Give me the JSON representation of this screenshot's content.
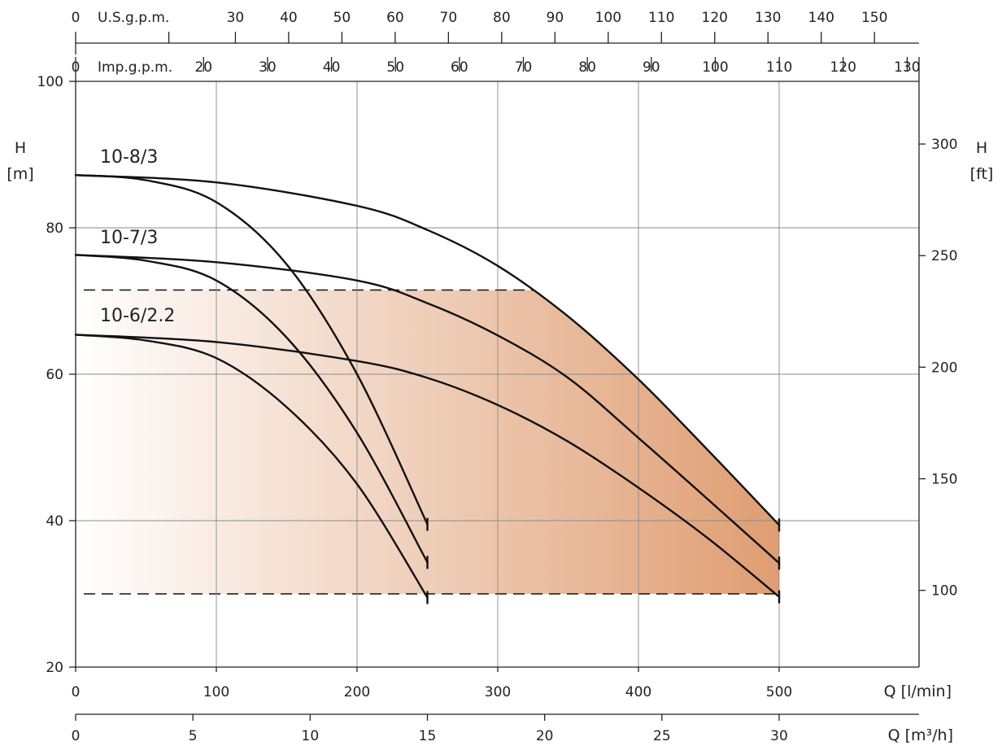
{
  "chart_data": {
    "type": "line",
    "x_axis_main": {
      "label": "Q [l/min]",
      "range": [
        0,
        500
      ],
      "ticks": [
        0,
        100,
        200,
        300,
        400,
        500
      ]
    },
    "x_axis_m3h": {
      "label": "Q [m³/h]",
      "ticks": [
        0,
        5,
        10,
        15,
        20,
        25,
        30
      ]
    },
    "x_axis_usgpm": {
      "label": "U.S.g.p.m.",
      "ticks": [
        0,
        30,
        40,
        50,
        60,
        70,
        80,
        90,
        100,
        110,
        120,
        130,
        140,
        150
      ]
    },
    "x_axis_impgpm": {
      "label": "Imp.g.p.m.",
      "ticks": [
        0,
        20,
        30,
        40,
        50,
        60,
        70,
        80,
        90,
        100,
        110,
        120,
        130
      ]
    },
    "y_axis_left": {
      "label": "H",
      "unit": "[m]",
      "range": [
        20,
        100
      ],
      "ticks": [
        20,
        40,
        60,
        80,
        100
      ]
    },
    "y_axis_right": {
      "label": "H",
      "unit": "[ft]",
      "ticks": [
        100,
        150,
        200,
        250,
        300
      ]
    },
    "grid": true,
    "operating_range": {
      "h_max": 71.5,
      "h_min": 30,
      "q_max": 500,
      "color_light": "#ffffff",
      "color_dark": "#df9d72"
    },
    "series": [
      {
        "name": "10-8/3",
        "upper": [
          [
            0,
            87.2
          ],
          [
            100,
            86.2
          ],
          [
            200,
            83
          ],
          [
            250,
            79.7
          ],
          [
            300,
            74.8
          ],
          [
            350,
            67.9
          ],
          [
            400,
            59.3
          ],
          [
            450,
            49.5
          ],
          [
            500,
            39.4
          ]
        ],
        "lower": [
          [
            0,
            87.2
          ],
          [
            50,
            86.5
          ],
          [
            100,
            83.5
          ],
          [
            150,
            75
          ],
          [
            200,
            60
          ],
          [
            250,
            39.5
          ]
        ]
      },
      {
        "name": "10-7/3",
        "upper": [
          [
            0,
            76.3
          ],
          [
            100,
            75.3
          ],
          [
            200,
            72.8
          ],
          [
            250,
            69.7
          ],
          [
            300,
            65.3
          ],
          [
            350,
            59.5
          ],
          [
            400,
            51.3
          ],
          [
            450,
            42.8
          ],
          [
            500,
            34.2
          ]
        ],
        "lower": [
          [
            0,
            76.3
          ],
          [
            50,
            75.5
          ],
          [
            100,
            72.8
          ],
          [
            150,
            65
          ],
          [
            200,
            52
          ],
          [
            250,
            34.3
          ]
        ]
      },
      {
        "name": "10-6/2.2",
        "upper": [
          [
            0,
            65.4
          ],
          [
            100,
            64.4
          ],
          [
            200,
            61.8
          ],
          [
            250,
            59.5
          ],
          [
            300,
            55.8
          ],
          [
            350,
            50.8
          ],
          [
            400,
            44.5
          ],
          [
            450,
            37.5
          ],
          [
            500,
            29.6
          ]
        ],
        "lower": [
          [
            0,
            65.4
          ],
          [
            50,
            64.6
          ],
          [
            100,
            62.2
          ],
          [
            150,
            55.5
          ],
          [
            200,
            45
          ],
          [
            250,
            29.5
          ]
        ]
      }
    ]
  }
}
